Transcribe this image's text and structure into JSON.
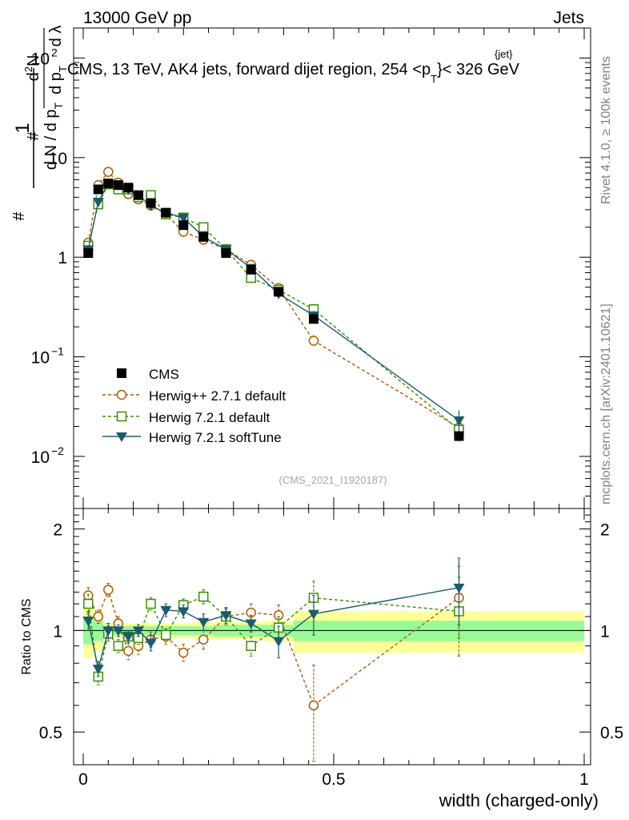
{
  "header": {
    "left": "13000 GeV pp",
    "right": "Jets",
    "plot_title": "CMS, 13 TeV, AK4 jets, forward dijet region, 254 <p",
    "plot_title_sub": "T",
    "plot_title_sup": "{jet}",
    "plot_title_end": "}< 326 GeV"
  },
  "side_text": {
    "rivet": "Rivet 4.1.0, ≥ 100k events",
    "mcplots": "mcplots.cern.ch [arXiv:2401.10621]"
  },
  "watermark": "(CMS_2021_I1920187)",
  "colors": {
    "cms": "#000000",
    "herwigpp": "#b35900",
    "herwig_default": "#3a8f00",
    "herwig_soft": "#1a5b6e",
    "band_inner": "#98fb98",
    "band_outer": "#ffff99"
  },
  "chart_data": {
    "type": "scatter",
    "ylabel_main_parts": [
      "1",
      "d N / d p",
      "T",
      "#",
      "d",
      "2",
      "N",
      "d p",
      "T",
      "d λ",
      "#"
    ],
    "ylabel_ratio": "Ratio to CMS",
    "xlabel": "width (charged-only)",
    "xlim": [
      0,
      1
    ],
    "ylim_main": [
      0.003,
      200
    ],
    "ylim_ratio": [
      0.4,
      2.3
    ],
    "x_ticks": [
      {
        "v": 0,
        "label": "0"
      },
      {
        "v": 0.5,
        "label": "0.5"
      },
      {
        "v": 1,
        "label": "1"
      }
    ],
    "y_ticks_main": [
      {
        "base": "10",
        "exp": "−2",
        "v": 0.01
      },
      {
        "base": "10",
        "exp": "−1",
        "v": 0.1
      },
      {
        "base": "1",
        "exp": "",
        "v": 1
      },
      {
        "base": "10",
        "exp": "",
        "v": 10
      },
      {
        "base": "10",
        "exp": "2",
        "v": 100
      }
    ],
    "y_ticks_ratio": [
      {
        "v": 0.5,
        "label": "0.5"
      },
      {
        "v": 1,
        "label": "1"
      },
      {
        "v": 2,
        "label": "2"
      }
    ],
    "x": [
      0.01,
      0.03,
      0.05,
      0.07,
      0.09,
      0.11,
      0.135,
      0.165,
      0.2,
      0.24,
      0.285,
      0.335,
      0.39,
      0.46,
      0.75
    ],
    "bin_edges": [
      0,
      0.02,
      0.04,
      0.06,
      0.08,
      0.1,
      0.12,
      0.15,
      0.18,
      0.22,
      0.26,
      0.31,
      0.36,
      0.42,
      0.5,
      1.0
    ],
    "ratio_band_inner": [
      0.09,
      0.07,
      0.03,
      0.03,
      0.03,
      0.03,
      0.03,
      0.03,
      0.03,
      0.03,
      0.04,
      0.04,
      0.04,
      0.07,
      0.07
    ],
    "ratio_band_outer": [
      0.17,
      0.13,
      0.05,
      0.05,
      0.05,
      0.05,
      0.05,
      0.05,
      0.05,
      0.06,
      0.06,
      0.06,
      0.07,
      0.14,
      0.14
    ],
    "series": [
      {
        "name": "CMS",
        "key": "cms",
        "marker": "filled-square",
        "values": [
          1.1,
          4.8,
          5.5,
          5.3,
          5.0,
          4.2,
          3.5,
          2.8,
          2.1,
          1.6,
          1.1,
          0.75,
          0.45,
          0.24,
          0.016
        ],
        "errors": [
          0.02,
          0.05,
          0.05,
          0.05,
          0.05,
          0.04,
          0.04,
          0.03,
          0.02,
          0.02,
          0.01,
          0.01,
          0.01,
          0.004,
          0.001
        ]
      },
      {
        "name": "Herwig++ 2.7.1 default",
        "key": "herwigpp",
        "marker": "open-circle",
        "line": "dashed",
        "values": [
          1.4,
          5.3,
          7.2,
          5.6,
          4.3,
          3.8,
          3.3,
          2.7,
          1.8,
          1.5,
          1.2,
          0.84,
          0.49,
          0.145,
          0.0195
        ],
        "errors": [
          0.08,
          0.2,
          0.25,
          0.2,
          0.15,
          0.12,
          0.1,
          0.08,
          0.06,
          0.05,
          0.05,
          0.04,
          0.03,
          0.02,
          0.004
        ],
        "ratio": [
          1.27,
          1.1,
          1.32,
          1.05,
          0.87,
          0.9,
          0.94,
          0.96,
          0.86,
          0.94,
          1.1,
          1.13,
          1.11,
          0.6,
          1.25
        ],
        "ratio_err": [
          0.07,
          0.05,
          0.06,
          0.05,
          0.05,
          0.05,
          0.05,
          0.05,
          0.05,
          0.06,
          0.06,
          0.07,
          0.08,
          0.19,
          0.3
        ]
      },
      {
        "name": "Herwig 7.2.1 default",
        "key": "herwig_default",
        "marker": "open-square",
        "line": "dashed",
        "values": [
          1.3,
          3.4,
          5.4,
          4.8,
          4.8,
          4.0,
          4.2,
          2.7,
          2.5,
          2.0,
          1.2,
          0.62,
          0.47,
          0.3,
          0.0185
        ],
        "errors": [
          0.08,
          0.15,
          0.2,
          0.15,
          0.15,
          0.12,
          0.12,
          0.08,
          0.07,
          0.06,
          0.05,
          0.04,
          0.03,
          0.04,
          0.005
        ],
        "ratio": [
          1.2,
          0.73,
          0.98,
          0.9,
          0.96,
          0.95,
          1.2,
          0.97,
          1.19,
          1.26,
          1.1,
          0.9,
          1.02,
          1.25,
          1.14
        ],
        "ratio_err": [
          0.08,
          0.04,
          0.05,
          0.04,
          0.04,
          0.04,
          0.05,
          0.04,
          0.05,
          0.06,
          0.06,
          0.06,
          0.08,
          0.15,
          0.3
        ]
      },
      {
        "name": "Herwig 7.2.1 softTune",
        "key": "herwig_soft",
        "marker": "filled-triangle-down",
        "line": "solid",
        "values": [
          1.2,
          3.6,
          5.5,
          5.3,
          4.8,
          4.2,
          3.3,
          2.8,
          2.5,
          1.6,
          1.2,
          0.78,
          0.43,
          0.26,
          0.023
        ],
        "errors": [
          0.08,
          0.15,
          0.2,
          0.15,
          0.15,
          0.12,
          0.1,
          0.08,
          0.07,
          0.06,
          0.05,
          0.04,
          0.03,
          0.03,
          0.006
        ],
        "ratio": [
          1.07,
          0.77,
          1.0,
          1.0,
          0.96,
          1.0,
          0.92,
          1.15,
          1.14,
          1.06,
          1.11,
          1.05,
          0.93,
          1.12,
          1.34
        ],
        "ratio_err": [
          0.07,
          0.04,
          0.05,
          0.04,
          0.04,
          0.04,
          0.05,
          0.05,
          0.05,
          0.06,
          0.06,
          0.06,
          0.1,
          0.15,
          0.3
        ]
      }
    ]
  }
}
